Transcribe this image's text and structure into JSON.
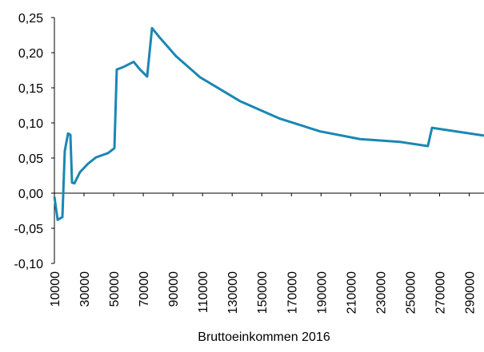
{
  "chart_data": {
    "type": "line",
    "x_label": "Bruttoeinkommen 2016",
    "x": [
      10000,
      12200,
      15400,
      17000,
      19200,
      20800,
      21900,
      23500,
      27300,
      32700,
      38100,
      46200,
      50500,
      52100,
      57000,
      63500,
      67800,
      72600,
      75900,
      81300,
      92100,
      108300,
      135300,
      162300,
      189300,
      216300,
      243300,
      262100,
      264900,
      300000
    ],
    "series": [
      {
        "color": "#1a87b3",
        "values": [
          -0.005,
          -0.038,
          -0.034,
          0.06,
          0.085,
          0.083,
          0.015,
          0.014,
          0.03,
          0.042,
          0.051,
          0.057,
          0.064,
          0.176,
          0.18,
          0.187,
          0.176,
          0.166,
          0.235,
          0.221,
          0.195,
          0.165,
          0.131,
          0.106,
          0.088,
          0.077,
          0.073,
          0.067,
          0.093,
          0.082
        ]
      }
    ],
    "xlim": [
      10000,
      300000
    ],
    "xticks": [
      10000,
      30000,
      50000,
      70000,
      90000,
      110000,
      130000,
      150000,
      170000,
      190000,
      210000,
      230000,
      250000,
      270000,
      290000
    ],
    "ylim": [
      -0.1,
      0.25
    ],
    "yticks": [
      {
        "value": -0.1,
        "label": "-0,10"
      },
      {
        "value": -0.05,
        "label": "-0,05"
      },
      {
        "value": 0,
        "label": "0,00"
      },
      {
        "value": 0.05,
        "label": "0,05"
      },
      {
        "value": 0.1,
        "label": "0,10"
      },
      {
        "value": 0.15,
        "label": "0,15"
      },
      {
        "value": 0.2,
        "label": "0,20"
      },
      {
        "value": 0.25,
        "label": "0,25"
      }
    ]
  }
}
